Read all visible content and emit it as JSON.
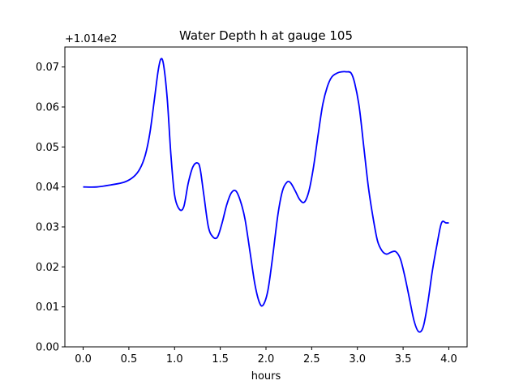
{
  "chart_data": {
    "type": "line",
    "title": "Water Depth h at gauge 105",
    "xlabel": "hours",
    "ylabel": "",
    "offset_text": "+1.014e2",
    "xlim": [
      -0.2,
      4.2
    ],
    "ylim": [
      0.0,
      0.075
    ],
    "x_ticks": [
      0.0,
      0.5,
      1.0,
      1.5,
      2.0,
      2.5,
      3.0,
      3.5,
      4.0
    ],
    "x_tick_labels": [
      "0.0",
      "0.5",
      "1.0",
      "1.5",
      "2.0",
      "2.5",
      "3.0",
      "3.5",
      "4.0"
    ],
    "y_ticks": [
      0.0,
      0.01,
      0.02,
      0.03,
      0.04,
      0.05,
      0.06,
      0.07
    ],
    "y_tick_labels": [
      "0.00",
      "0.01",
      "0.02",
      "0.03",
      "0.04",
      "0.05",
      "0.06",
      "0.07"
    ],
    "grid": false,
    "series": [
      {
        "color": "#0000ff",
        "x": [
          0.0,
          0.15,
          0.3,
          0.45,
          0.55,
          0.62,
          0.68,
          0.73,
          0.78,
          0.82,
          0.85,
          0.88,
          0.92,
          0.96,
          1.0,
          1.05,
          1.1,
          1.15,
          1.2,
          1.25,
          1.28,
          1.32,
          1.37,
          1.42,
          1.47,
          1.52,
          1.57,
          1.62,
          1.67,
          1.72,
          1.77,
          1.83,
          1.88,
          1.93,
          1.97,
          2.02,
          2.07,
          2.13,
          2.18,
          2.23,
          2.27,
          2.32,
          2.37,
          2.42,
          2.47,
          2.52,
          2.57,
          2.62,
          2.67,
          2.72,
          2.78,
          2.83,
          2.88,
          2.93,
          2.97,
          3.02,
          3.07,
          3.12,
          3.17,
          3.22,
          3.27,
          3.32,
          3.37,
          3.42,
          3.47,
          3.52,
          3.57,
          3.62,
          3.67,
          3.72,
          3.77,
          3.82,
          3.87,
          3.92,
          3.97,
          4.0
        ],
        "y": [
          0.04,
          0.04,
          0.0405,
          0.0412,
          0.0425,
          0.0445,
          0.048,
          0.0535,
          0.062,
          0.069,
          0.072,
          0.0705,
          0.062,
          0.048,
          0.038,
          0.0345,
          0.035,
          0.041,
          0.045,
          0.046,
          0.0445,
          0.038,
          0.03,
          0.0275,
          0.0275,
          0.031,
          0.0355,
          0.0385,
          0.039,
          0.0365,
          0.032,
          0.023,
          0.0155,
          0.011,
          0.0105,
          0.014,
          0.022,
          0.033,
          0.039,
          0.0412,
          0.041,
          0.039,
          0.0368,
          0.0362,
          0.039,
          0.045,
          0.053,
          0.0605,
          0.065,
          0.0675,
          0.0685,
          0.0688,
          0.0688,
          0.0685,
          0.066,
          0.06,
          0.05,
          0.04,
          0.0325,
          0.0265,
          0.024,
          0.0232,
          0.0237,
          0.0238,
          0.022,
          0.0175,
          0.012,
          0.0065,
          0.0038,
          0.005,
          0.011,
          0.019,
          0.0255,
          0.031,
          0.031,
          0.031
        ]
      }
    ]
  }
}
